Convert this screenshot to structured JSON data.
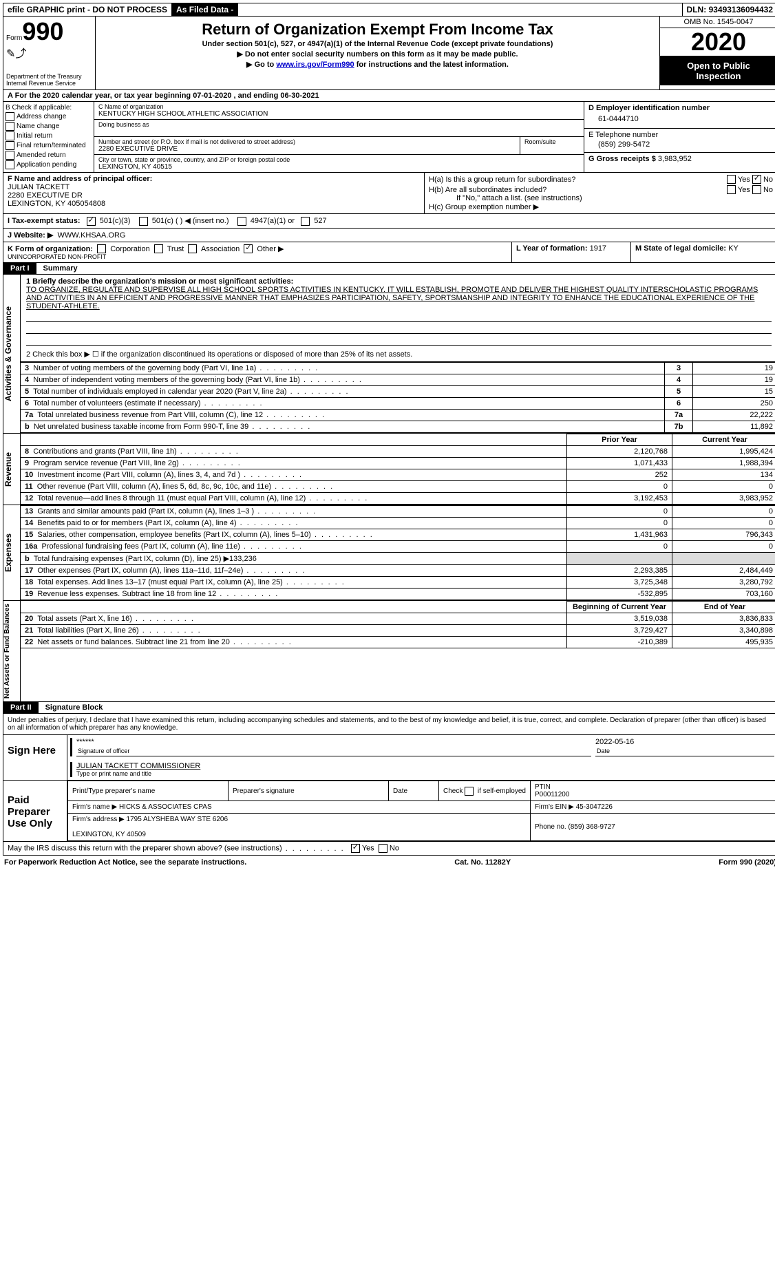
{
  "topbar": {
    "efile": "efile GRAPHIC print - DO NOT PROCESS",
    "asfiled": "As Filed Data -",
    "dln_label": "DLN:",
    "dln": "93493136094432"
  },
  "header": {
    "form_word": "Form",
    "form_number": "990",
    "dept": "Department of the Treasury\nInternal Revenue Service",
    "title": "Return of Organization Exempt From Income Tax",
    "subtitle1": "Under section 501(c), 527, or 4947(a)(1) of the Internal Revenue Code (except private foundations)",
    "subtitle2": "▶ Do not enter social security numbers on this form as it may be made public.",
    "subtitle3_pre": "▶ Go to ",
    "subtitle3_link": "www.irs.gov/Form990",
    "subtitle3_post": " for instructions and the latest information.",
    "omb": "OMB No. 1545-0047",
    "year": "2020",
    "open": "Open to Public Inspection"
  },
  "row_a": "A   For the 2020 calendar year, or tax year beginning 07-01-2020   , and ending 06-30-2021",
  "col_b": {
    "label": "B Check if applicable:",
    "opts": [
      "Address change",
      "Name change",
      "Initial return",
      "Final return/terminated",
      "Amended return",
      "Application pending"
    ]
  },
  "col_c": {
    "name_label": "C Name of organization",
    "name": "KENTUCKY HIGH SCHOOL ATHLETIC ASSOCIATION",
    "dba_label": "Doing business as",
    "street_label": "Number and street (or P.O. box if mail is not delivered to street address)",
    "street": "2280 EXECUTIVE DRIVE",
    "room_label": "Room/suite",
    "city_label": "City or town, state or province, country, and ZIP or foreign postal code",
    "city": "LEXINGTON, KY  40515"
  },
  "col_de": {
    "d_label": "D Employer identification number",
    "ein": "61-0444710",
    "e_label": "E Telephone number",
    "phone": "(859) 299-5472",
    "g_label": "G Gross receipts $",
    "g_val": "3,983,952"
  },
  "row_f": {
    "left_label": "F Name and address of principal officer:",
    "officer": "JULIAN TACKETT\n2280 EXECUTIVE DR\nLEXINGTON, KY  405054808",
    "ha": "H(a)  Is this a group return for subordinates?",
    "hb": "H(b)  Are all subordinates included?",
    "hb_note": "If \"No,\" attach a list. (see instructions)",
    "hc": "H(c)  Group exemption number ▶",
    "yes": "Yes",
    "no": "No"
  },
  "row_i": {
    "label": "I  Tax-exempt status:",
    "opt1": "501(c)(3)",
    "opt2": "501(c) (   ) ◀ (insert no.)",
    "opt3": "4947(a)(1) or",
    "opt4": "527"
  },
  "row_j": {
    "label": "J  Website: ▶",
    "val": "WWW.KHSAA.ORG"
  },
  "row_k": {
    "label": "K Form of organization:",
    "corp": "Corporation",
    "trust": "Trust",
    "assoc": "Association",
    "other": "Other ▶",
    "other_val": "UNINCORPORATED NON-PROFIT",
    "l_label": "L Year of formation:",
    "l_val": "1917",
    "m_label": "M State of legal domicile:",
    "m_val": "KY"
  },
  "part1": {
    "header": "Part I",
    "title": "Summary"
  },
  "mission": {
    "line1_label": "1  Briefly describe the organization's mission or most significant activities:",
    "text": "TO ORGANIZE, REGULATE AND SUPERVISE ALL HIGH SCHOOL SPORTS ACTIVITIES IN KENTUCKY. IT WILL ESTABLISH, PROMOTE AND DELIVER THE HIGHEST QUALITY INTERSCHOLASTIC PROGRAMS AND ACTIVITIES IN AN EFFICIENT AND PROGRESSIVE MANNER THAT EMPHASIZES PARTICIPATION, SAFETY, SPORTSMANSHIP AND INTEGRITY TO ENHANCE THE EDUCATIONAL EXPERIENCE OF THE STUDENT-ATHLETE.",
    "line2": "2   Check this box ▶ ☐ if the organization discontinued its operations or disposed of more than 25% of its net assets."
  },
  "gov_lines": [
    {
      "n": "3",
      "desc": "Number of voting members of the governing body (Part VI, line 1a)",
      "col": "3",
      "val": "19"
    },
    {
      "n": "4",
      "desc": "Number of independent voting members of the governing body (Part VI, line 1b)",
      "col": "4",
      "val": "19"
    },
    {
      "n": "5",
      "desc": "Total number of individuals employed in calendar year 2020 (Part V, line 2a)",
      "col": "5",
      "val": "15"
    },
    {
      "n": "6",
      "desc": "Total number of volunteers (estimate if necessary)",
      "col": "6",
      "val": "250"
    },
    {
      "n": "7a",
      "desc": "Total unrelated business revenue from Part VIII, column (C), line 12",
      "col": "7a",
      "val": "22,222"
    },
    {
      "n": "b",
      "desc": "Net unrelated business taxable income from Form 990-T, line 39",
      "col": "7b",
      "val": "11,892"
    }
  ],
  "year_cols": {
    "prior": "Prior Year",
    "current": "Current Year"
  },
  "revenue_lines": [
    {
      "n": "8",
      "desc": "Contributions and grants (Part VIII, line 1h)",
      "p": "2,120,768",
      "c": "1,995,424"
    },
    {
      "n": "9",
      "desc": "Program service revenue (Part VIII, line 2g)",
      "p": "1,071,433",
      "c": "1,988,394"
    },
    {
      "n": "10",
      "desc": "Investment income (Part VIII, column (A), lines 3, 4, and 7d )",
      "p": "252",
      "c": "134"
    },
    {
      "n": "11",
      "desc": "Other revenue (Part VIII, column (A), lines 5, 6d, 8c, 9c, 10c, and 11e)",
      "p": "0",
      "c": "0"
    },
    {
      "n": "12",
      "desc": "Total revenue—add lines 8 through 11 (must equal Part VIII, column (A), line 12)",
      "p": "3,192,453",
      "c": "3,983,952"
    }
  ],
  "expense_lines": [
    {
      "n": "13",
      "desc": "Grants and similar amounts paid (Part IX, column (A), lines 1–3 )",
      "p": "0",
      "c": "0"
    },
    {
      "n": "14",
      "desc": "Benefits paid to or for members (Part IX, column (A), line 4)",
      "p": "0",
      "c": "0"
    },
    {
      "n": "15",
      "desc": "Salaries, other compensation, employee benefits (Part IX, column (A), lines 5–10)",
      "p": "1,431,963",
      "c": "796,343"
    },
    {
      "n": "16a",
      "desc": "Professional fundraising fees (Part IX, column (A), line 11e)",
      "p": "0",
      "c": "0"
    },
    {
      "n": "b",
      "desc": "Total fundraising expenses (Part IX, column (D), line 25) ▶133,236",
      "p": "",
      "c": "",
      "gray": true
    },
    {
      "n": "17",
      "desc": "Other expenses (Part IX, column (A), lines 11a–11d, 11f–24e)",
      "p": "2,293,385",
      "c": "2,484,449"
    },
    {
      "n": "18",
      "desc": "Total expenses. Add lines 13–17 (must equal Part IX, column (A), line 25)",
      "p": "3,725,348",
      "c": "3,280,792"
    },
    {
      "n": "19",
      "desc": "Revenue less expenses. Subtract line 18 from line 12",
      "p": "-532,895",
      "c": "703,160"
    }
  ],
  "net_cols": {
    "begin": "Beginning of Current Year",
    "end": "End of Year"
  },
  "net_lines": [
    {
      "n": "20",
      "desc": "Total assets (Part X, line 16)",
      "p": "3,519,038",
      "c": "3,836,833"
    },
    {
      "n": "21",
      "desc": "Total liabilities (Part X, line 26)",
      "p": "3,729,427",
      "c": "3,340,898"
    },
    {
      "n": "22",
      "desc": "Net assets or fund balances. Subtract line 21 from line 20",
      "p": "-210,389",
      "c": "495,935"
    }
  ],
  "part2": {
    "header": "Part II",
    "title": "Signature Block"
  },
  "sig": {
    "intro": "Under penalties of perjury, I declare that I have examined this return, including accompanying schedules and statements, and to the best of my knowledge and belief, it is true, correct, and complete. Declaration of preparer (other than officer) is based on all information of which preparer has any knowledge.",
    "sign_here": "Sign Here",
    "stars": "******",
    "sig_of": "Signature of officer",
    "date": "2022-05-16",
    "date_label": "Date",
    "name": "JULIAN TACKETT COMMISSIONER",
    "name_label": "Type or print name and title"
  },
  "paid": {
    "label": "Paid Preparer Use Only",
    "h1": "Print/Type preparer's name",
    "h2": "Preparer's signature",
    "h3": "Date",
    "h4_pre": "Check",
    "h4_post": "if self-employed",
    "h5": "PTIN",
    "ptin": "P00011200",
    "firm_name_label": "Firm's name     ▶",
    "firm_name": "HICKS & ASSOCIATES CPAS",
    "firm_ein_label": "Firm's EIN ▶",
    "firm_ein": "45-3047226",
    "firm_addr_label": "Firm's address ▶",
    "firm_addr": "1795 ALYSHEBA WAY STE 6206\n\nLEXINGTON, KY  40509",
    "phone_label": "Phone no.",
    "phone": "(859) 368-9727"
  },
  "discuss": {
    "text": "May the IRS discuss this return with the preparer shown above? (see instructions)",
    "yes": "Yes",
    "no": "No"
  },
  "footer": {
    "left": "For Paperwork Reduction Act Notice, see the separate instructions.",
    "mid": "Cat. No. 11282Y",
    "right_pre": "Form ",
    "right_bold": "990",
    "right_post": " (2020)"
  },
  "vtabs": {
    "gov": "Activities & Governance",
    "rev": "Revenue",
    "exp": "Expenses",
    "net": "Net Assets or Fund Balances"
  }
}
